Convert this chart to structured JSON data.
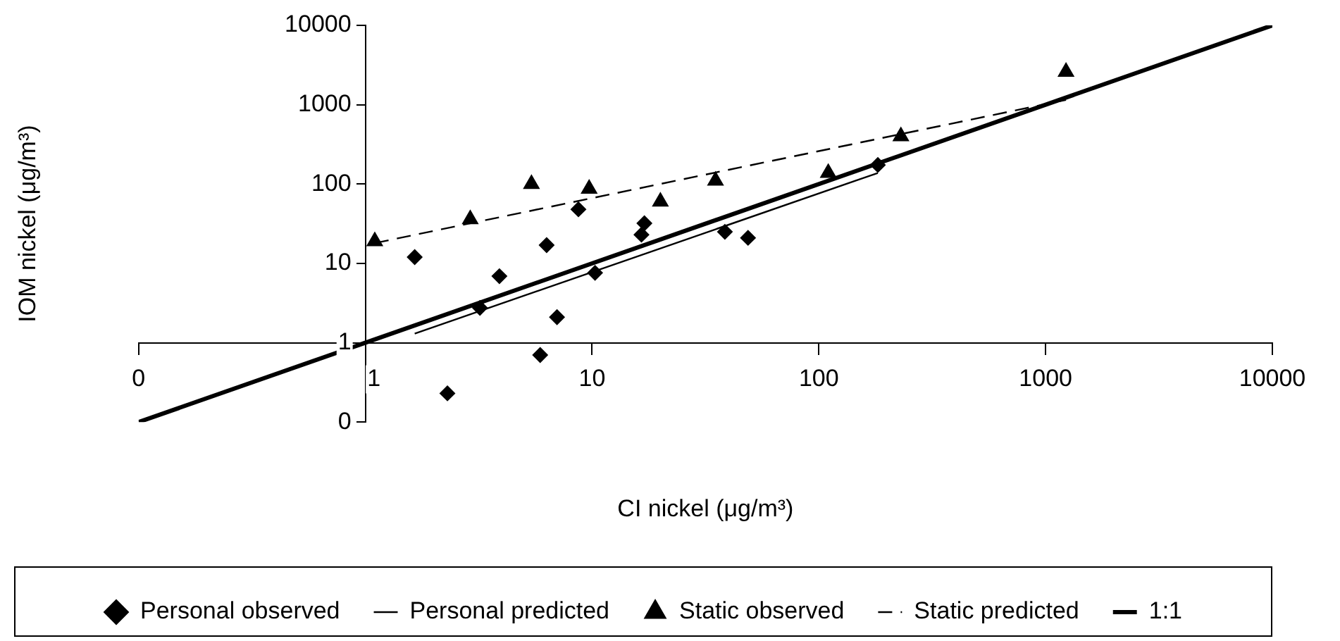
{
  "chart_data": {
    "type": "scatter",
    "xlabel": "CI nickel (μg/m³)",
    "ylabel": "IOM nickel (μg/m³)",
    "log": "xy",
    "legend": "bottom",
    "marker": "none",
    "xlim": [
      0.1,
      10000
    ],
    "ylim": [
      0.1,
      10000
    ],
    "xticks": [
      {
        "value": 0.1,
        "label": "0"
      },
      1,
      10,
      100,
      1000,
      10000
    ],
    "yticks": [
      {
        "value": 0.1,
        "label": "0"
      },
      1,
      10,
      100,
      1000,
      10000
    ],
    "series": [
      {
        "name": "Personal observed",
        "type": "scatter",
        "marker": "diamond",
        "color": "#000000",
        "x": [
          1.65,
          2.3,
          3.2,
          3.9,
          5.9,
          6.3,
          7.0,
          8.7,
          10.3,
          16.5,
          17,
          38.5,
          48.7,
          182
        ],
        "values": [
          12,
          0.23,
          2.75,
          6.9,
          0.7,
          17,
          2.1,
          48,
          7.6,
          23,
          32,
          25,
          21,
          174
        ]
      },
      {
        "name": "Personal predicted",
        "type": "line",
        "line_style": "solid",
        "color": "#000000",
        "x": [
          1.65,
          182
        ],
        "values": [
          1.3,
          138
        ]
      },
      {
        "name": "Static observed",
        "type": "scatter",
        "marker": "triangle",
        "color": "#000000",
        "x": [
          1.1,
          2.9,
          5.4,
          9.7,
          20,
          35,
          110,
          230,
          1230
        ],
        "values": [
          19,
          36,
          100,
          87,
          60,
          110,
          138,
          400,
          2600
        ]
      },
      {
        "name": "Static predicted",
        "type": "line",
        "line_style": "dashed",
        "color": "#000000",
        "x": [
          1.1,
          1230
        ],
        "values": [
          18,
          1150
        ]
      },
      {
        "name": "1:1",
        "type": "line",
        "line_style": "solid",
        "color": "#000000",
        "x": [
          0.1,
          10000
        ],
        "values": [
          0.1,
          10000
        ]
      }
    ]
  }
}
